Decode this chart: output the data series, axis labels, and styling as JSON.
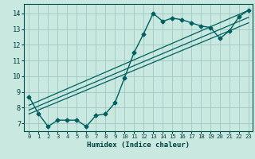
{
  "xlabel": "Humidex (Indice chaleur)",
  "ylabel": "",
  "background_color": "#c8e8e0",
  "grid_color": "#a0c8c0",
  "line_color": "#006060",
  "xlim": [
    -0.5,
    23.4
  ],
  "ylim": [
    6.5,
    14.6
  ],
  "xticks": [
    0,
    1,
    2,
    3,
    4,
    5,
    6,
    7,
    8,
    9,
    10,
    11,
    12,
    13,
    14,
    15,
    16,
    17,
    18,
    19,
    20,
    21,
    22,
    23
  ],
  "yticks": [
    7,
    8,
    9,
    10,
    11,
    12,
    13,
    14
  ],
  "series1_x": [
    0,
    1,
    2,
    3,
    4,
    5,
    6,
    7,
    8,
    9,
    10,
    11,
    12,
    13,
    14,
    15,
    16,
    17,
    18,
    19,
    20,
    21,
    22,
    23
  ],
  "series1_y": [
    8.7,
    7.6,
    6.8,
    7.2,
    7.2,
    7.2,
    6.8,
    7.5,
    7.6,
    8.3,
    9.9,
    11.5,
    12.7,
    14.0,
    13.5,
    13.7,
    13.6,
    13.4,
    13.2,
    13.1,
    12.4,
    12.9,
    13.8,
    14.2
  ],
  "line1_x": [
    0,
    23
  ],
  "line1_y": [
    8.15,
    14.2
  ],
  "line2_x": [
    0,
    23
  ],
  "line2_y": [
    7.85,
    13.75
  ],
  "line3_x": [
    0,
    23
  ],
  "line3_y": [
    7.6,
    13.4
  ]
}
